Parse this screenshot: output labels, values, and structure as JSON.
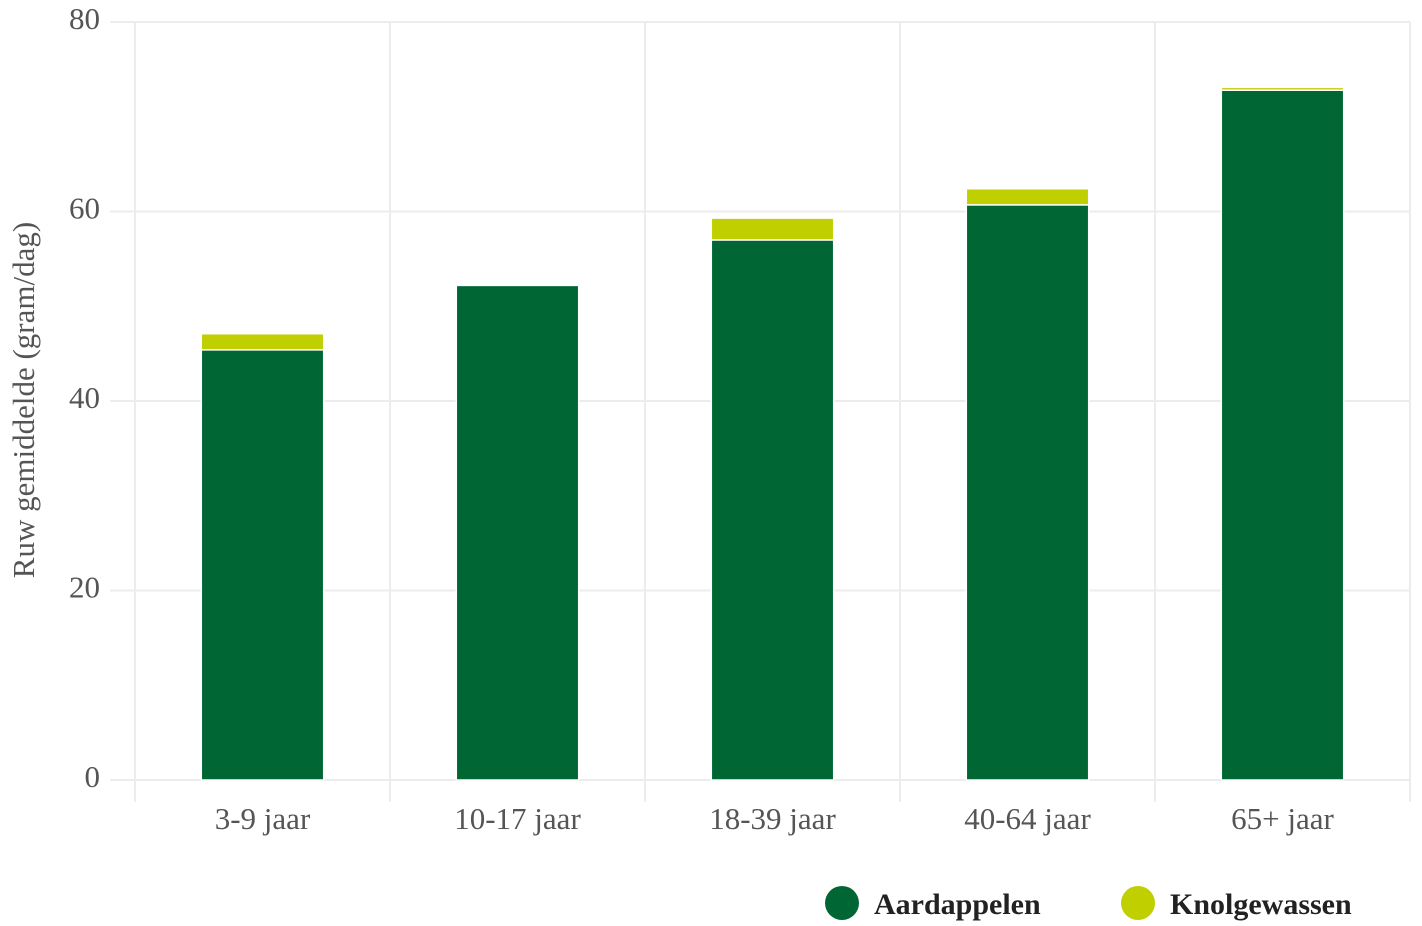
{
  "chart_data": {
    "type": "stacked_bar",
    "y_label": "Ruw gemiddelde (gram/dag)",
    "categories": [
      "3-9 jaar",
      "10-17 jaar",
      "18-39 jaar",
      "40-64 jaar",
      "65+ jaar"
    ],
    "series": [
      {
        "name": "Aardappelen",
        "color": "#006633",
        "values": [
          45.4,
          52.2,
          57.0,
          60.7,
          72.8
        ]
      },
      {
        "name": "Knolgewassen",
        "color": "#bfcf00",
        "values": [
          1.7,
          0,
          2.3,
          1.7,
          0.3
        ]
      }
    ],
    "ylim": [
      0,
      80
    ],
    "yticks": [
      0,
      20,
      40,
      60,
      80
    ],
    "grid": true,
    "legend": "bottom-right"
  }
}
